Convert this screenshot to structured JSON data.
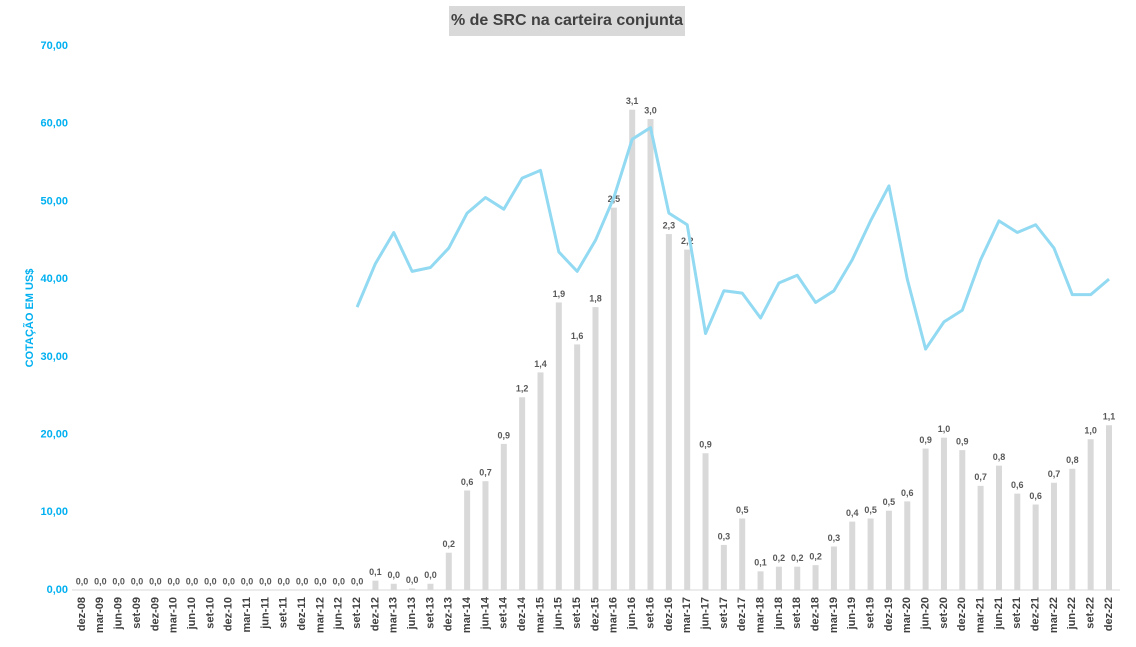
{
  "chart_data": {
    "type": "bar",
    "title": "% de SRC na carteira conjunta",
    "y_label": "COTAÇÃO EM US$",
    "categories": [
      "dez-08",
      "mar-09",
      "jun-09",
      "set-09",
      "dez-09",
      "mar-10",
      "jun-10",
      "set-10",
      "dez-10",
      "mar-11",
      "jun-11",
      "set-11",
      "dez-11",
      "mar-12",
      "jun-12",
      "set-12",
      "dez-12",
      "mar-13",
      "jun-13",
      "set-13",
      "dez-13",
      "mar-14",
      "jun-14",
      "set-14",
      "dez-14",
      "mar-15",
      "jun-15",
      "set-15",
      "dez-15",
      "mar-16",
      "jun-16",
      "set-16",
      "dez-16",
      "mar-17",
      "jun-17",
      "set-17",
      "dez-17",
      "mar-18",
      "jun-18",
      "set-18",
      "dez-18",
      "mar-19",
      "jun-19",
      "set-19",
      "dez-19",
      "mar-20",
      "jun-20",
      "set-20",
      "dez-20",
      "mar-21",
      "jun-21",
      "set-21",
      "dez-21",
      "mar-22",
      "jun-22",
      "set-22",
      "dez-22"
    ],
    "ylim": [
      0,
      70
    ],
    "yticks": [
      {
        "value": 0,
        "label": "0,00"
      },
      {
        "value": 10,
        "label": "10,00"
      },
      {
        "value": 20,
        "label": "20,00"
      },
      {
        "value": 30,
        "label": "30,00"
      },
      {
        "value": 40,
        "label": "40,00"
      },
      {
        "value": 50,
        "label": "50,00"
      },
      {
        "value": 60,
        "label": "60,00"
      },
      {
        "value": 70,
        "label": "70,00"
      }
    ],
    "y2lim": [
      0,
      3.5
    ],
    "series": [
      {
        "type": "bar",
        "axis": "y2",
        "color": "#d9d9d9",
        "values": [
          0,
          0,
          0,
          0,
          0,
          0,
          0,
          0,
          0,
          0,
          0,
          0,
          0,
          0,
          0,
          0,
          0.06,
          0.04,
          0.01,
          0.04,
          0.24,
          0.64,
          0.7,
          0.94,
          1.24,
          1.4,
          1.85,
          1.58,
          1.82,
          2.46,
          3.09,
          3.03,
          2.29,
          2.19,
          0.88,
          0.29,
          0.46,
          0.12,
          0.15,
          0.15,
          0.16,
          0.28,
          0.44,
          0.46,
          0.51,
          0.57,
          0.91,
          0.98,
          0.9,
          0.67,
          0.8,
          0.62,
          0.55,
          0.69,
          0.78,
          0.97,
          1.06
        ],
        "value_labels": [
          "0,0",
          "0,0",
          "0,0",
          "0,0",
          "0,0",
          "0,0",
          "0,0",
          "0,0",
          "0,0",
          "0,0",
          "0,0",
          "0,0",
          "0,0",
          "0,0",
          "0,0",
          "0,0",
          "0,1",
          "0,0",
          "0,0",
          "0,0",
          "0,2",
          "0,6",
          "0,7",
          "0,9",
          "1,2",
          "1,4",
          "1,9",
          "1,6",
          "1,8",
          "2,5",
          "3,1",
          "3,0",
          "2,3",
          "2,2",
          "0,9",
          "0,3",
          "0,5",
          "0,1",
          "0,2",
          "0,2",
          "0,2",
          "0,3",
          "0,4",
          "0,5",
          "0,5",
          "0,6",
          "0,9",
          "1,0",
          "0,9",
          "0,7",
          "0,8",
          "0,6",
          "0,6",
          "0,7",
          "0,8",
          "1,0",
          "1,1"
        ]
      },
      {
        "type": "line",
        "color": "#92d9f2",
        "values": [
          null,
          null,
          null,
          null,
          null,
          null,
          null,
          null,
          null,
          null,
          null,
          null,
          null,
          null,
          null,
          36.4,
          42,
          46,
          41,
          41.5,
          44,
          48.5,
          50.5,
          49,
          53,
          54,
          43.5,
          41,
          45,
          50.5,
          58,
          59.5,
          48.5,
          47,
          33,
          38.5,
          38.2,
          35,
          39.5,
          40.5,
          37,
          38.5,
          42.5,
          47.5,
          52,
          40,
          31,
          34.5,
          36,
          42.5,
          47.5,
          46,
          47,
          44,
          38,
          38,
          40
        ]
      }
    ]
  }
}
